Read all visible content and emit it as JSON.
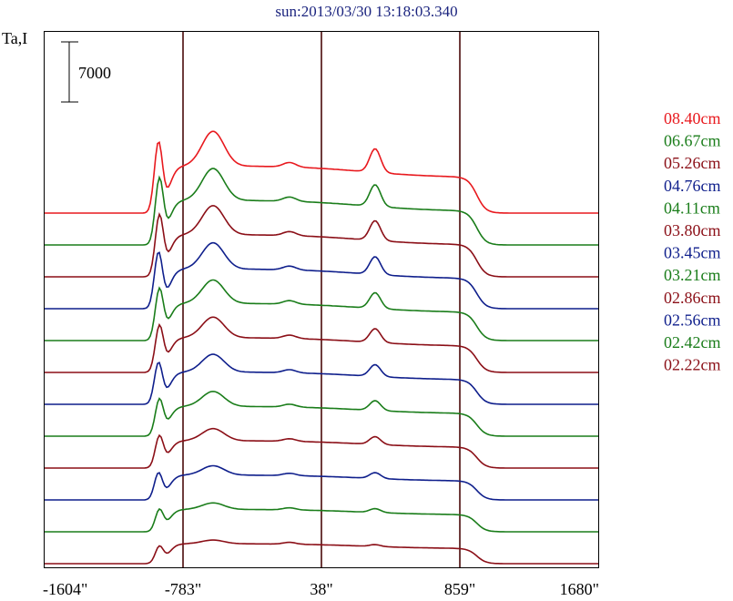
{
  "title": "sun:2013/03/30 13:18:03.340",
  "ylabel": "Ta,I",
  "scale_bar_label": "7000",
  "scale_bar_value": 7000,
  "chart_data": {
    "type": "line",
    "title": "sun:2013/03/30 13:18:03.340",
    "ylabel": "Ta,I",
    "xlabel": "",
    "x_ticks": [
      "-1604\"",
      "-783\"",
      "38\"",
      "859\"",
      "1680\""
    ],
    "x_tick_values": [
      -1604,
      -783,
      38,
      859,
      1680
    ],
    "xlim": [
      -1604,
      1680
    ],
    "vertical_lines": [
      -783,
      38,
      859
    ],
    "grid": false,
    "legend_position": "right",
    "scale_bar": 7000,
    "series": [
      {
        "name": "08.40cm",
        "color": "#e8191e"
      },
      {
        "name": "06.67cm",
        "color": "#1a7d1a"
      },
      {
        "name": "05.26cm",
        "color": "#8b0f17"
      },
      {
        "name": "04.76cm",
        "color": "#0f1f8c"
      },
      {
        "name": "04.11cm",
        "color": "#1a7d1a"
      },
      {
        "name": "03.80cm",
        "color": "#8b0f17"
      },
      {
        "name": "03.45cm",
        "color": "#0f1f8c"
      },
      {
        "name": "03.21cm",
        "color": "#1a7d1a"
      },
      {
        "name": "02.86cm",
        "color": "#8b0f17"
      },
      {
        "name": "02.56cm",
        "color": "#0f1f8c"
      },
      {
        "name": "02.42cm",
        "color": "#1a7d1a"
      },
      {
        "name": "02.22cm",
        "color": "#8b0f17"
      }
    ]
  }
}
